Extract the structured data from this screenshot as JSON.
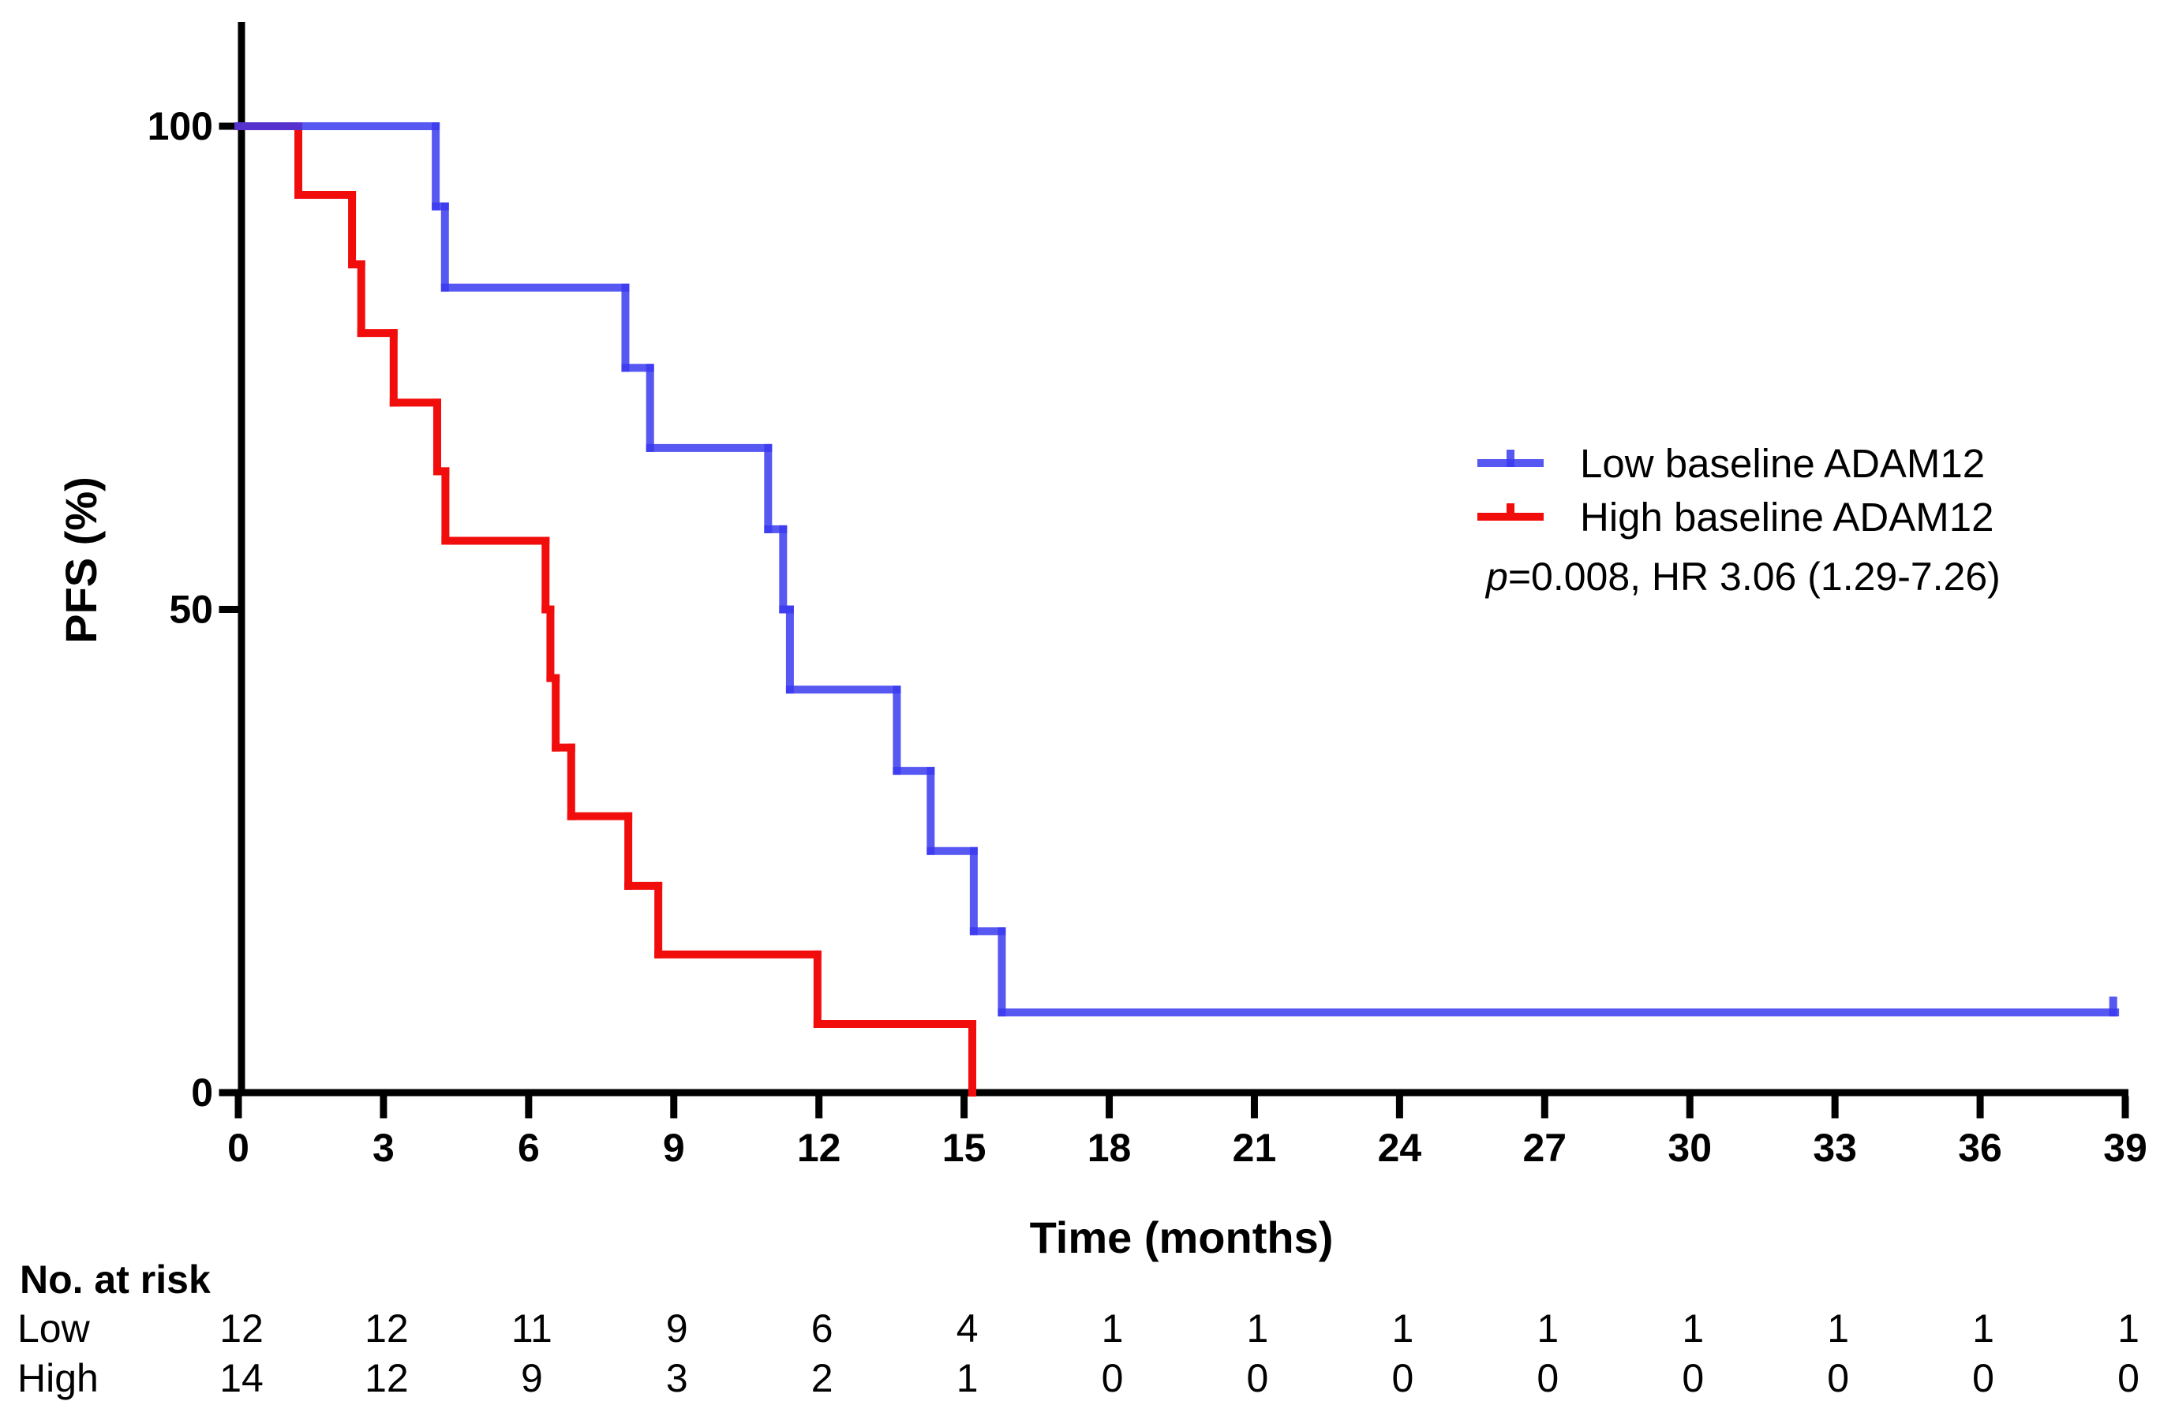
{
  "figure": {
    "background": "#ffffff",
    "axis_color": "#000000"
  },
  "chart_data": {
    "type": "line",
    "subtype": "kaplan-meier-step",
    "title": "",
    "xlabel": "Time (months)",
    "ylabel": "PFS (%)",
    "xlim": [
      0,
      39
    ],
    "ylim": [
      0,
      100
    ],
    "x_ticks": [
      0,
      3,
      6,
      9,
      12,
      15,
      18,
      21,
      24,
      27,
      30,
      33,
      36,
      39
    ],
    "y_ticks": [
      0,
      50,
      100
    ],
    "grid": false,
    "legend_position": "upper-right",
    "series": [
      {
        "name": "Low baseline ADAM12",
        "color": "#3a3af0",
        "opacity": 0.85,
        "steps": [
          [
            0,
            100
          ],
          [
            4.08,
            100
          ],
          [
            4.08,
            91.7
          ],
          [
            4.27,
            91.7
          ],
          [
            4.27,
            83.3
          ],
          [
            8.0,
            83.3
          ],
          [
            8.0,
            75
          ],
          [
            8.51,
            75
          ],
          [
            8.51,
            66.7
          ],
          [
            10.95,
            66.7
          ],
          [
            10.95,
            58.3
          ],
          [
            11.26,
            58.3
          ],
          [
            11.26,
            50
          ],
          [
            11.4,
            50
          ],
          [
            11.4,
            41.7
          ],
          [
            13.61,
            41.7
          ],
          [
            13.61,
            33.3
          ],
          [
            14.31,
            33.3
          ],
          [
            14.31,
            25
          ],
          [
            15.2,
            25
          ],
          [
            15.2,
            16.7
          ],
          [
            15.78,
            16.7
          ],
          [
            15.78,
            8.3
          ],
          [
            38.79,
            8.3
          ]
        ],
        "censors": [
          {
            "t": 38.75,
            "v": 8.3
          }
        ]
      },
      {
        "name": "High baseline ADAM12",
        "color": "#f20d0d",
        "opacity": 1,
        "steps": [
          [
            0,
            100
          ],
          [
            1.24,
            100
          ],
          [
            1.24,
            92.9
          ],
          [
            2.35,
            92.9
          ],
          [
            2.35,
            85.7
          ],
          [
            2.54,
            85.7
          ],
          [
            2.54,
            78.6
          ],
          [
            3.21,
            78.6
          ],
          [
            3.21,
            71.4
          ],
          [
            4.11,
            71.4
          ],
          [
            4.11,
            64.3
          ],
          [
            4.28,
            64.3
          ],
          [
            4.28,
            57.1
          ],
          [
            6.35,
            57.1
          ],
          [
            6.35,
            50
          ],
          [
            6.45,
            50
          ],
          [
            6.45,
            42.9
          ],
          [
            6.56,
            42.9
          ],
          [
            6.56,
            35.7
          ],
          [
            6.88,
            35.7
          ],
          [
            6.88,
            28.6
          ],
          [
            8.06,
            28.6
          ],
          [
            8.06,
            21.4
          ],
          [
            8.68,
            21.4
          ],
          [
            8.68,
            14.3
          ],
          [
            11.97,
            14.3
          ],
          [
            11.97,
            7.1
          ],
          [
            15.17,
            7.1
          ],
          [
            15.17,
            0
          ]
        ],
        "censors": []
      }
    ],
    "annotation": "p=0.008, HR 3.06 (1.29-7.26)",
    "annotation_italic_first_char": true,
    "risk_table": {
      "header": "No. at risk",
      "times": [
        0,
        3,
        6,
        9,
        12,
        15,
        18,
        21,
        24,
        27,
        30,
        33,
        36,
        39
      ],
      "rows": [
        {
          "label": "Low",
          "values": [
            12,
            12,
            11,
            9,
            6,
            4,
            1,
            1,
            1,
            1,
            1,
            1,
            1,
            1
          ]
        },
        {
          "label": "High",
          "values": [
            14,
            12,
            9,
            3,
            2,
            1,
            0,
            0,
            0,
            0,
            0,
            0,
            0,
            0
          ]
        }
      ]
    }
  }
}
